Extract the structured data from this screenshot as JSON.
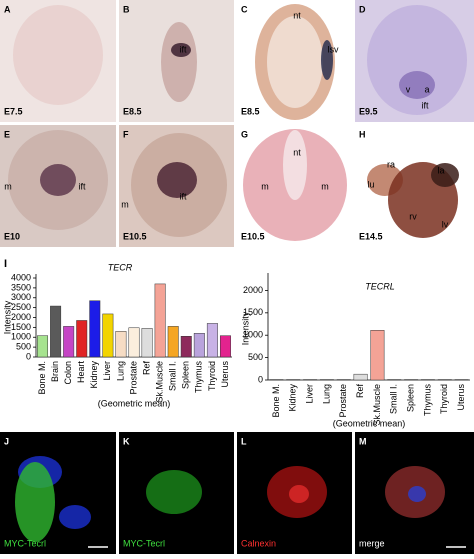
{
  "panels": [
    {
      "letter": "A",
      "stage": "E7.5",
      "labels": []
    },
    {
      "letter": "B",
      "stage": "E8.5",
      "labels": [
        "ift"
      ]
    },
    {
      "letter": "C",
      "stage": "E8.5",
      "labels": [
        "nt",
        "lsv"
      ]
    },
    {
      "letter": "D",
      "stage": "E9.5",
      "labels": [
        "v",
        "a",
        "ift"
      ]
    },
    {
      "letter": "E",
      "stage": "E10",
      "labels": [
        "m",
        "ift"
      ]
    },
    {
      "letter": "F",
      "stage": "E10.5",
      "labels": [
        "m",
        "ift"
      ]
    },
    {
      "letter": "G",
      "stage": "E10.5",
      "labels": [
        "nt",
        "m",
        "m"
      ]
    },
    {
      "letter": "H",
      "stage": "E14.5",
      "labels": [
        "lu",
        "ra",
        "la",
        "rv",
        "lv"
      ]
    }
  ],
  "panel_I_letter": "I",
  "chart_data": [
    {
      "type": "bar",
      "title": "TECR",
      "y_label": "Intensity",
      "x_label": "(Geometric mean)",
      "categories": [
        "Bone M.",
        "Brain",
        "Colon",
        "Heart",
        "Kidney",
        "Liver",
        "Lung",
        "Prostate",
        "Ref",
        "Sk.Muscle",
        "Small I.",
        "Spleen",
        "Thymus",
        "Thyroid",
        "Uterus"
      ],
      "values": [
        1080,
        2580,
        1550,
        1850,
        2850,
        2180,
        1300,
        1480,
        1450,
        3700,
        1550,
        1050,
        1200,
        1700,
        1080
      ],
      "colors": [
        "#a6e38f",
        "#5a5a5a",
        "#c545c5",
        "#e02424",
        "#1c1ce8",
        "#f2d400",
        "#f6dcc4",
        "#fbeedd",
        "#dddddd",
        "#f4a396",
        "#f5a623",
        "#8e2a5c",
        "#b9a3dc",
        "#c8b2e6",
        "#e3238e"
      ],
      "ylim": [
        0,
        4000
      ],
      "yticks": [
        0,
        500,
        1000,
        1500,
        2000,
        2500,
        3000,
        3500,
        4000
      ]
    },
    {
      "type": "bar",
      "title": "TECRL",
      "y_label": "Intensity",
      "x_label": "(Geometric mean)",
      "categories": [
        "Bone M.",
        "Kidney",
        "Liver",
        "Lung",
        "Prostate",
        "Ref",
        "Sk.Muscle",
        "Small I.",
        "Spleen",
        "Thymus",
        "Thyroid",
        "Uterus"
      ],
      "values": [
        10,
        10,
        10,
        10,
        10,
        130,
        1110,
        10,
        10,
        10,
        10,
        10
      ],
      "colors": [
        "#ffffff",
        "#ffffff",
        "#ffffff",
        "#ffffff",
        "#ffffff",
        "#dddddd",
        "#f4a396",
        "#ffffff",
        "#ffffff",
        "#ffffff",
        "#ffffff",
        "#ffffff"
      ],
      "ylim": [
        0,
        2300
      ],
      "yticks": [
        0,
        500,
        1000,
        1500,
        2000
      ]
    }
  ],
  "fluorescence_panels": [
    {
      "letter": "J",
      "caption": "MYC-Tecrl"
    },
    {
      "letter": "K",
      "caption": "MYC-Tecrl"
    },
    {
      "letter": "L",
      "caption": "Calnexin"
    },
    {
      "letter": "M",
      "caption": "merge"
    }
  ]
}
